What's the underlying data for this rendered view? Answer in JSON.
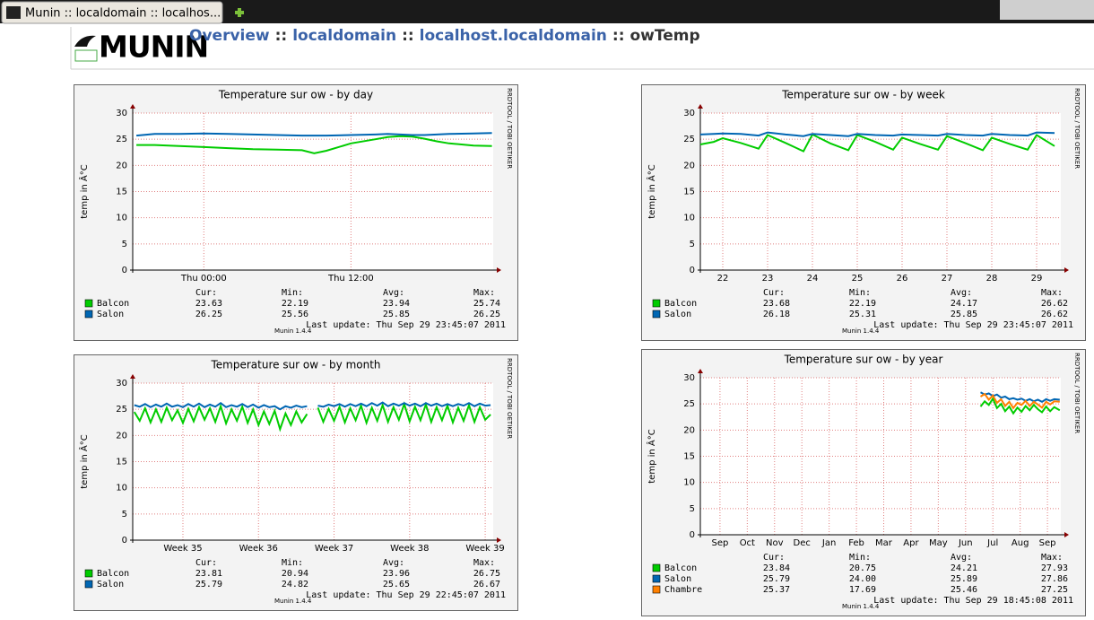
{
  "browser_tab": {
    "title": "Munin :: localdomain :: localhos..."
  },
  "header": {
    "logo": "MUNIN",
    "breadcrumb": [
      "Overview",
      "localdomain",
      "localhost.localdomain",
      "owTemp"
    ],
    "separator": "::"
  },
  "chart_data": [
    {
      "type": "line",
      "title": "Temperature sur ow - by day",
      "y_label": "temp in Â°C",
      "ylim": [
        0,
        30
      ],
      "yticks": [
        0,
        5,
        10,
        15,
        20,
        25,
        30
      ],
      "xlim": [
        -5.8,
        23.6
      ],
      "xticks": [
        {
          "value": 0,
          "label": "Thu 00:00"
        },
        {
          "value": 12,
          "label": "Thu 12:00"
        }
      ],
      "x": [
        -5.5,
        -4,
        -2,
        0,
        2,
        4,
        6,
        8,
        9,
        10,
        12,
        14,
        15,
        16,
        17,
        18,
        19,
        20,
        22,
        23.5
      ],
      "stat_labels": [
        "Cur:",
        "Min:",
        "Avg:",
        "Max:"
      ],
      "series": [
        {
          "name": "Balcon",
          "color": "#00cc00",
          "values": [
            23.9,
            23.9,
            23.7,
            23.5,
            23.3,
            23.1,
            23.0,
            22.9,
            22.3,
            22.8,
            24.2,
            25.0,
            25.4,
            25.6,
            25.5,
            25.1,
            24.6,
            24.2,
            23.8,
            23.7
          ],
          "stats": [
            "23.63",
            "22.19",
            "23.94",
            "25.74"
          ]
        },
        {
          "name": "Salon",
          "color": "#0066b3",
          "values": [
            25.7,
            26.0,
            26.0,
            26.1,
            26.0,
            25.9,
            25.8,
            25.7,
            25.7,
            25.7,
            25.8,
            25.9,
            26.0,
            25.9,
            25.8,
            25.8,
            25.9,
            26.0,
            26.1,
            26.2
          ],
          "stats": [
            "26.25",
            "25.56",
            "25.85",
            "26.25"
          ]
        }
      ],
      "last_update": "Last update:  Thu Sep 29 23:45:07 2011",
      "footer": "Munin 1.4.4",
      "side_text": "RRDTOOL / TOBI OETIKER"
    },
    {
      "type": "line",
      "title": "Temperature sur ow - by week",
      "y_label": "temp in Â°C",
      "ylim": [
        0,
        30
      ],
      "yticks": [
        0,
        5,
        10,
        15,
        20,
        25,
        30
      ],
      "xlim": [
        21.5,
        29.54
      ],
      "xticks": [
        22,
        23,
        24,
        25,
        26,
        27,
        28,
        29
      ],
      "x": [
        21.5,
        21.8,
        22.0,
        22.4,
        22.8,
        23.0,
        23.4,
        23.8,
        24.0,
        24.4,
        24.8,
        25.0,
        25.4,
        25.8,
        26.0,
        26.4,
        26.8,
        27.0,
        27.4,
        27.8,
        28.0,
        28.4,
        28.8,
        29.0,
        29.4
      ],
      "stat_labels": [
        "Cur:",
        "Min:",
        "Avg:",
        "Max:"
      ],
      "series": [
        {
          "name": "Balcon",
          "color": "#00cc00",
          "values": [
            24.0,
            24.5,
            25.2,
            24.3,
            23.2,
            25.8,
            24.3,
            22.7,
            25.9,
            24.2,
            22.9,
            25.8,
            24.5,
            23.0,
            25.3,
            24.1,
            23.0,
            25.6,
            24.3,
            22.9,
            25.3,
            24.1,
            23.0,
            25.8,
            23.7
          ],
          "stats": [
            "23.68",
            "22.19",
            "24.17",
            "26.62"
          ]
        },
        {
          "name": "Salon",
          "color": "#0066b3",
          "values": [
            25.9,
            26.0,
            26.1,
            26.0,
            25.7,
            26.3,
            25.9,
            25.6,
            26.0,
            25.8,
            25.6,
            26.0,
            25.8,
            25.7,
            25.9,
            25.8,
            25.7,
            26.0,
            25.8,
            25.7,
            26.0,
            25.8,
            25.7,
            26.3,
            26.2
          ],
          "stats": [
            "26.18",
            "25.31",
            "25.85",
            "26.62"
          ]
        }
      ],
      "last_update": "Last update:  Thu Sep 29 23:45:07 2011",
      "footer": "Munin 1.4.4",
      "side_text": "RRDTOOL / TOBI OETIKER"
    },
    {
      "type": "line",
      "title": "Temperature sur ow - by month",
      "y_label": "temp in Â°C",
      "ylim": [
        0,
        30
      ],
      "yticks": [
        0,
        5,
        10,
        15,
        20,
        25,
        30
      ],
      "xlim": [
        -4.65,
        28.74
      ],
      "xticks": [
        {
          "value": 0,
          "label": "Week 35"
        },
        {
          "value": 7,
          "label": "Week 36"
        },
        {
          "value": 14,
          "label": "Week 37"
        },
        {
          "value": 21,
          "label": "Week 38"
        },
        {
          "value": 28,
          "label": "Week 39"
        }
      ],
      "x": [
        -4.5,
        -4,
        -3.5,
        -3,
        -2.5,
        -2,
        -1.5,
        -1,
        -0.5,
        0,
        0.5,
        1,
        1.5,
        2,
        2.5,
        3,
        3.5,
        4,
        4.5,
        5,
        5.5,
        6,
        6.5,
        7,
        7.5,
        8,
        8.5,
        9,
        9.5,
        10,
        10.5,
        11,
        11.5,
        12,
        12.5,
        13,
        13.5,
        14,
        14.5,
        15,
        15.5,
        16,
        16.5,
        17,
        17.5,
        18,
        18.5,
        19,
        19.5,
        20,
        20.5,
        21,
        21.5,
        22,
        22.5,
        23,
        23.5,
        24,
        24.5,
        25,
        25.5,
        26,
        26.5,
        27,
        27.5,
        28,
        28.5
      ],
      "stat_labels": [
        "Cur:",
        "Min:",
        "Avg:",
        "Max:"
      ],
      "series": [
        {
          "name": "Balcon",
          "color": "#00cc00",
          "values": [
            24.5,
            22.8,
            25.2,
            22.5,
            25.0,
            22.6,
            25.3,
            22.9,
            24.8,
            22.4,
            25.1,
            22.7,
            25.4,
            23.0,
            25.2,
            22.6,
            25.6,
            22.3,
            25.0,
            22.8,
            25.5,
            22.4,
            25.0,
            22.0,
            24.6,
            22.2,
            24.7,
            21.2,
            24.2,
            22.0,
            24.6,
            22.5,
            24.1,
            null,
            25.3,
            22.6,
            25.1,
            22.8,
            25.5,
            22.5,
            25.2,
            22.9,
            25.7,
            22.4,
            25.3,
            22.8,
            25.8,
            22.6,
            25.4,
            23.0,
            26.0,
            22.7,
            25.5,
            22.9,
            25.9,
            22.6,
            25.4,
            22.9,
            25.7,
            22.5,
            25.3,
            22.8,
            25.8,
            22.6,
            25.4,
            23.0,
            24.0
          ],
          "stats": [
            "23.81",
            "20.94",
            "23.96",
            "26.75"
          ]
        },
        {
          "name": "Salon",
          "color": "#0066b3",
          "values": [
            25.8,
            25.5,
            26.0,
            25.4,
            25.9,
            25.5,
            26.1,
            25.5,
            25.8,
            25.4,
            26.0,
            25.5,
            26.1,
            25.4,
            25.9,
            25.5,
            26.2,
            25.4,
            25.8,
            25.5,
            26.0,
            25.4,
            25.9,
            25.3,
            25.8,
            25.4,
            25.6,
            25.0,
            25.6,
            25.3,
            25.7,
            25.4,
            25.6,
            null,
            25.7,
            25.5,
            25.9,
            25.6,
            26.0,
            25.5,
            26.0,
            25.6,
            26.1,
            25.6,
            26.2,
            25.7,
            26.3,
            25.6,
            26.1,
            25.7,
            26.2,
            25.7,
            26.1,
            25.6,
            26.2,
            25.7,
            26.1,
            25.6,
            26.0,
            25.6,
            26.0,
            25.7,
            26.2,
            25.6,
            26.1,
            25.7,
            25.8
          ],
          "stats": [
            "25.79",
            "24.82",
            "25.65",
            "26.67"
          ]
        }
      ],
      "last_update": "Last update:  Thu Sep 29 22:45:07 2011",
      "footer": "Munin 1.4.4",
      "side_text": "RRDTOOL / TOBI OETIKER"
    },
    {
      "type": "line",
      "title": "Temperature sur ow - by year",
      "y_label": "temp in Â°C",
      "ylim": [
        0,
        30
      ],
      "yticks": [
        0,
        5,
        10,
        15,
        20,
        25,
        30
      ],
      "xlim": [
        -0.72,
        12.49
      ],
      "xticks": [
        {
          "value": 0,
          "label": "Sep"
        },
        {
          "value": 1,
          "label": "Oct"
        },
        {
          "value": 2,
          "label": "Nov"
        },
        {
          "value": 3,
          "label": "Dec"
        },
        {
          "value": 4,
          "label": "Jan"
        },
        {
          "value": 5,
          "label": "Feb"
        },
        {
          "value": 6,
          "label": "Mar"
        },
        {
          "value": 7,
          "label": "Apr"
        },
        {
          "value": 8,
          "label": "May"
        },
        {
          "value": 9,
          "label": "Jun"
        },
        {
          "value": 10,
          "label": "Jul"
        },
        {
          "value": 11,
          "label": "Aug"
        },
        {
          "value": 12,
          "label": "Sep"
        }
      ],
      "x": [
        9.55,
        9.7,
        9.85,
        10.0,
        10.15,
        10.3,
        10.45,
        10.6,
        10.75,
        10.9,
        11.05,
        11.2,
        11.35,
        11.5,
        11.65,
        11.8,
        11.95,
        12.1,
        12.25,
        12.45
      ],
      "stat_labels": [
        "Cur:",
        "Min:",
        "Avg:",
        "Max:"
      ],
      "series": [
        {
          "name": "Balcon",
          "color": "#00cc00",
          "values": [
            24.5,
            25.5,
            24.8,
            26.0,
            24.2,
            25.0,
            23.6,
            24.5,
            23.2,
            24.3,
            23.5,
            24.6,
            23.8,
            24.8,
            24.0,
            23.4,
            24.5,
            23.6,
            24.4,
            23.8
          ],
          "stats": [
            "23.84",
            "20.75",
            "24.21",
            "27.93"
          ]
        },
        {
          "name": "Salon",
          "color": "#0066b3",
          "values": [
            27.2,
            26.8,
            27.0,
            26.5,
            26.8,
            26.2,
            26.4,
            25.9,
            26.1,
            25.8,
            26.0,
            25.6,
            25.9,
            25.5,
            25.8,
            25.4,
            25.9,
            25.6,
            25.9,
            25.8
          ],
          "stats": [
            "25.79",
            "24.00",
            "25.89",
            "27.86"
          ]
        },
        {
          "name": "Chambre",
          "color": "#ff8000",
          "values": [
            26.4,
            26.9,
            25.8,
            26.6,
            25.2,
            25.9,
            24.6,
            25.4,
            24.2,
            25.2,
            24.8,
            25.6,
            24.6,
            25.4,
            24.9,
            24.3,
            25.4,
            24.9,
            25.5,
            25.4
          ],
          "stats": [
            "25.37",
            "17.69",
            "25.46",
            "27.25"
          ]
        }
      ],
      "last_update": "Last update:  Thu Sep 29 18:45:08 2011",
      "footer": "Munin 1.4.4",
      "side_text": "RRDTOOL / TOBI OETIKER"
    }
  ]
}
